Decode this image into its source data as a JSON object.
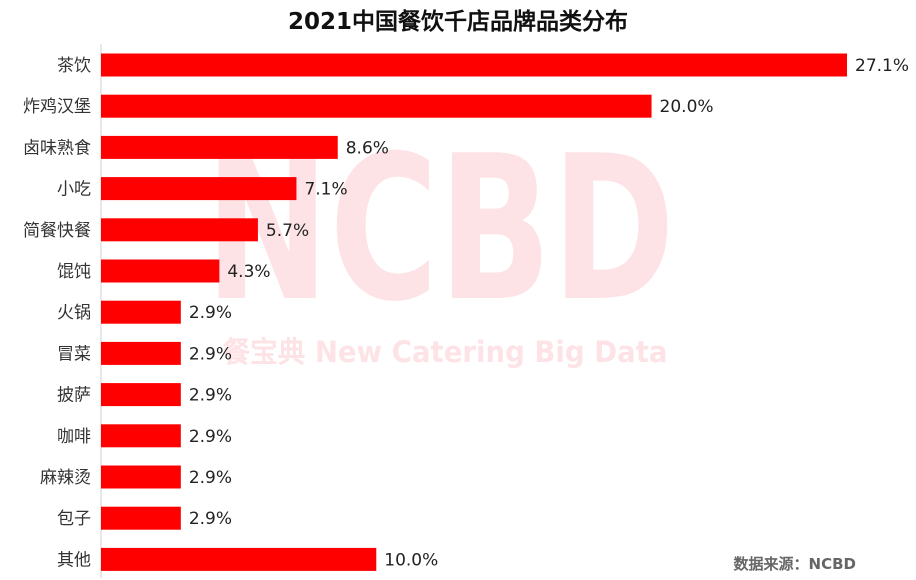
{
  "chart_data": {
    "type": "bar",
    "orientation": "horizontal",
    "title": "2021中国餐饮千店品牌品类分布",
    "categories": [
      "茶饮",
      "炸鸡汉堡",
      "卤味熟食",
      "小吃",
      "简餐快餐",
      "馄饨",
      "火锅",
      "冒菜",
      "披萨",
      "咖啡",
      "麻辣烫",
      "包子",
      "其他"
    ],
    "values": [
      27.1,
      20.0,
      8.6,
      7.1,
      5.7,
      4.3,
      2.9,
      2.9,
      2.9,
      2.9,
      2.9,
      2.9,
      10.0
    ],
    "value_labels": [
      "27.1%",
      "20.0%",
      "8.6%",
      "7.1%",
      "5.7%",
      "4.3%",
      "2.9%",
      "2.9%",
      "2.9%",
      "2.9%",
      "2.9%",
      "2.9%",
      "10.0%"
    ],
    "xlim": [
      0,
      27.1
    ],
    "unit": "%",
    "bar_color": "#ff0000",
    "grid": false,
    "legend": "none"
  },
  "watermark": {
    "big_text": "NCBD",
    "sub_text": "餐宝典  New Catering Big Data",
    "color": "#fde3e6"
  },
  "source": "数据来源：NCBD"
}
